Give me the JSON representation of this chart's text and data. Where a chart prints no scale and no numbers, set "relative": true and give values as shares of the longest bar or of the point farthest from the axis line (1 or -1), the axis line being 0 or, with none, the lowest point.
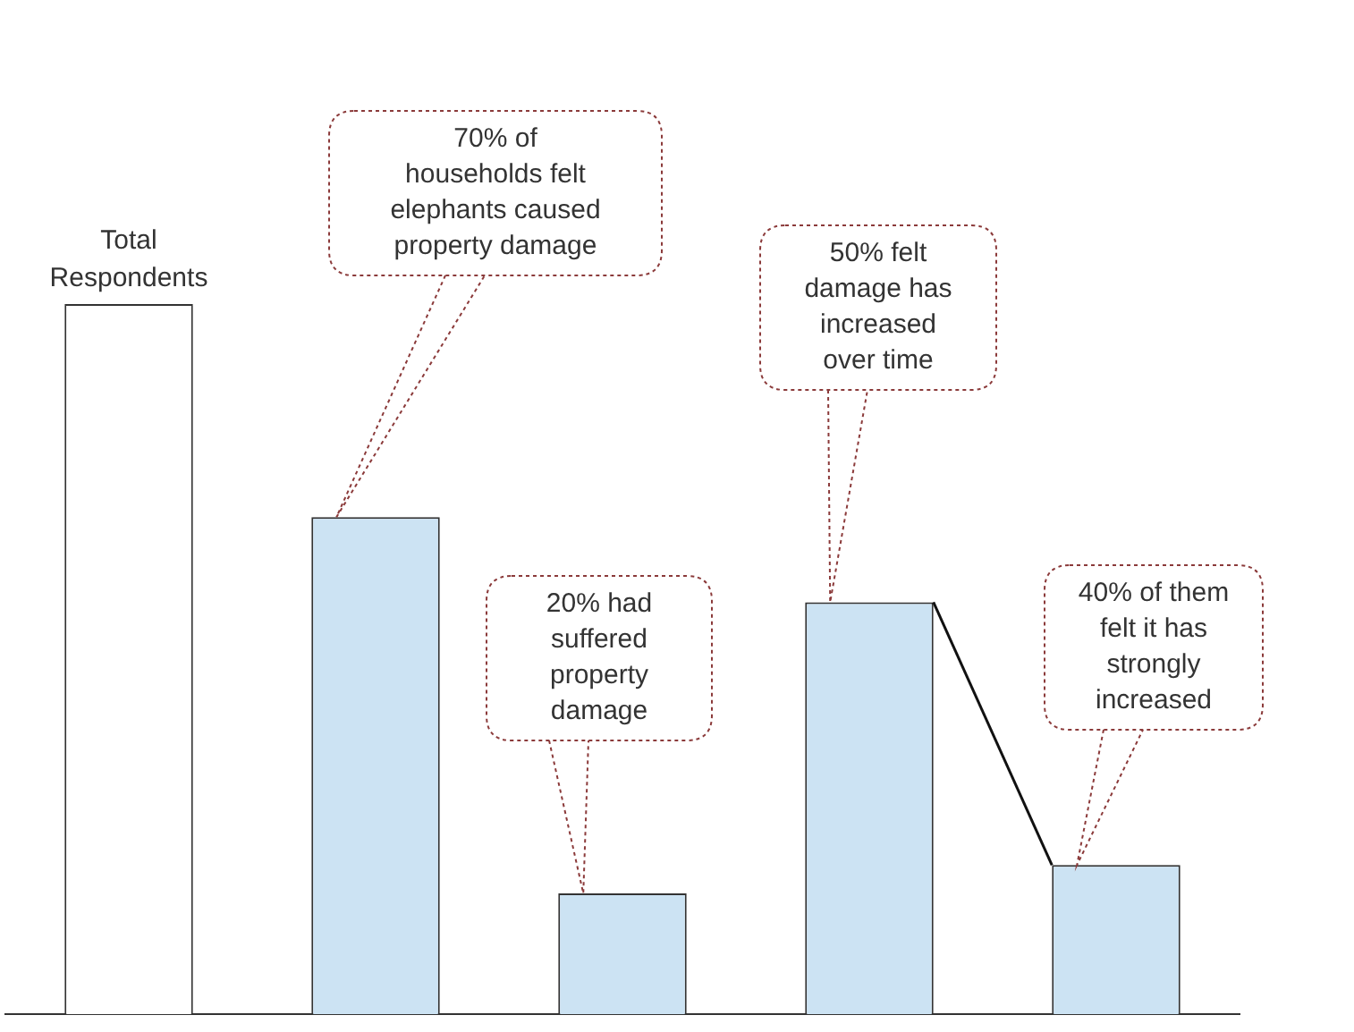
{
  "chart_data": {
    "type": "bar",
    "relative": true,
    "categories": [
      null,
      null,
      null,
      null,
      null
    ],
    "values": [
      1,
      0.7,
      0.17,
      0.58,
      0.21
    ],
    "colors": [
      "#ffffff",
      "#cce3f3",
      "#cce3f3",
      "#cce3f3",
      "#cce3f3"
    ],
    "annotations": [
      "Total Respondents",
      "70% of households felt elephants caused property damage",
      "20% had suffered property damage",
      "50% felt damage has increased over time",
      "40% of them felt it has strongly increased"
    ]
  }
}
